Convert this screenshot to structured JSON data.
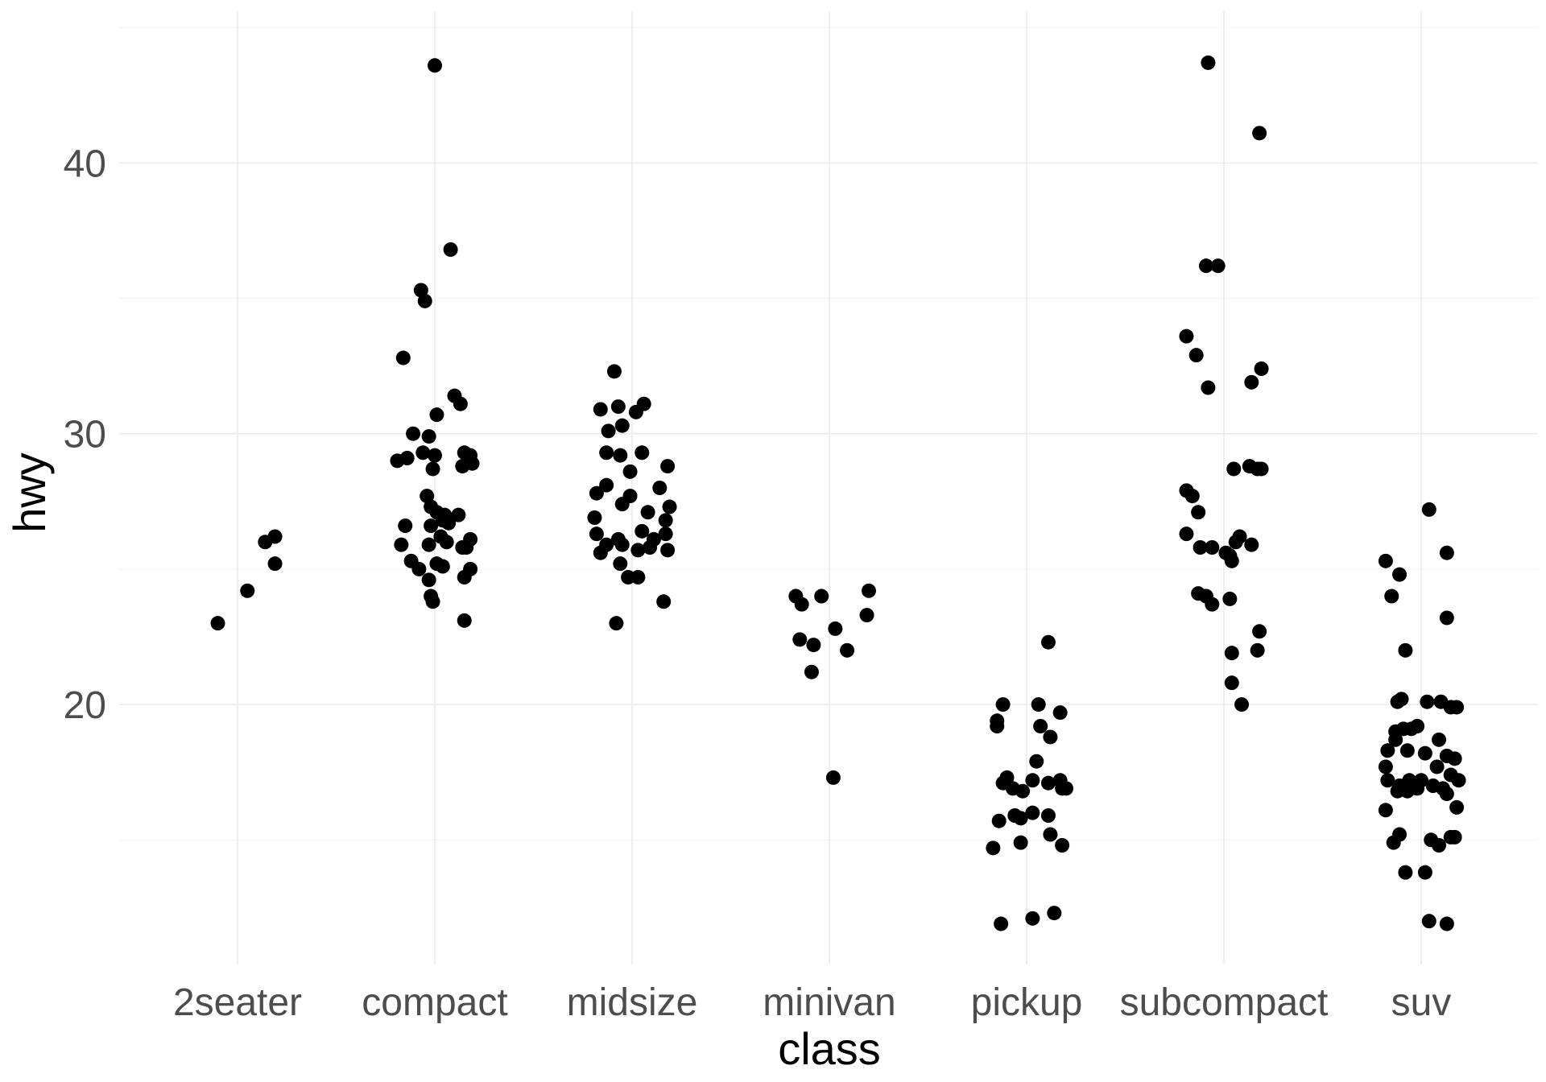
{
  "chart_data": {
    "type": "scatter",
    "title": "",
    "xlabel": "class",
    "ylabel": "hwy",
    "categories": [
      "2seater",
      "compact",
      "midsize",
      "minivan",
      "pickup",
      "subcompact",
      "suv"
    ],
    "y_ticks": [
      20,
      30,
      40
    ],
    "ylim": [
      10.4,
      45.6
    ],
    "grid": true,
    "point_color": "#000000",
    "background": "#ffffff",
    "grid_color": "#ebebeb",
    "points": [
      {
        "class": "2seater",
        "jitter": -0.1,
        "hwy": 23.0
      },
      {
        "class": "2seater",
        "jitter": 0.05,
        "hwy": 24.2
      },
      {
        "class": "2seater",
        "jitter": 0.14,
        "hwy": 26.0
      },
      {
        "class": "2seater",
        "jitter": 0.19,
        "hwy": 26.2
      },
      {
        "class": "2seater",
        "jitter": 0.19,
        "hwy": 25.2
      },
      {
        "class": "compact",
        "jitter": 0.0,
        "hwy": 43.6
      },
      {
        "class": "compact",
        "jitter": 0.08,
        "hwy": 36.8
      },
      {
        "class": "compact",
        "jitter": -0.07,
        "hwy": 35.3
      },
      {
        "class": "compact",
        "jitter": -0.05,
        "hwy": 34.9
      },
      {
        "class": "compact",
        "jitter": -0.16,
        "hwy": 32.8
      },
      {
        "class": "compact",
        "jitter": 0.1,
        "hwy": 31.4
      },
      {
        "class": "compact",
        "jitter": 0.13,
        "hwy": 31.1
      },
      {
        "class": "compact",
        "jitter": 0.01,
        "hwy": 30.7
      },
      {
        "class": "compact",
        "jitter": -0.11,
        "hwy": 30.0
      },
      {
        "class": "compact",
        "jitter": -0.03,
        "hwy": 29.9
      },
      {
        "class": "compact",
        "jitter": -0.06,
        "hwy": 29.3
      },
      {
        "class": "compact",
        "jitter": -0.14,
        "hwy": 29.1
      },
      {
        "class": "compact",
        "jitter": -0.19,
        "hwy": 29.0
      },
      {
        "class": "compact",
        "jitter": 0.0,
        "hwy": 29.2
      },
      {
        "class": "compact",
        "jitter": 0.15,
        "hwy": 29.3
      },
      {
        "class": "compact",
        "jitter": 0.18,
        "hwy": 29.2
      },
      {
        "class": "compact",
        "jitter": 0.19,
        "hwy": 28.9
      },
      {
        "class": "compact",
        "jitter": 0.14,
        "hwy": 28.8
      },
      {
        "class": "compact",
        "jitter": -0.01,
        "hwy": 28.7
      },
      {
        "class": "compact",
        "jitter": -0.04,
        "hwy": 27.7
      },
      {
        "class": "compact",
        "jitter": -0.02,
        "hwy": 27.3
      },
      {
        "class": "compact",
        "jitter": 0.01,
        "hwy": 27.1
      },
      {
        "class": "compact",
        "jitter": 0.05,
        "hwy": 27.0
      },
      {
        "class": "compact",
        "jitter": 0.12,
        "hwy": 27.0
      },
      {
        "class": "compact",
        "jitter": 0.04,
        "hwy": 26.8
      },
      {
        "class": "compact",
        "jitter": 0.07,
        "hwy": 26.7
      },
      {
        "class": "compact",
        "jitter": -0.02,
        "hwy": 26.6
      },
      {
        "class": "compact",
        "jitter": -0.15,
        "hwy": 26.6
      },
      {
        "class": "compact",
        "jitter": 0.03,
        "hwy": 26.2
      },
      {
        "class": "compact",
        "jitter": 0.18,
        "hwy": 26.1
      },
      {
        "class": "compact",
        "jitter": 0.06,
        "hwy": 26.0
      },
      {
        "class": "compact",
        "jitter": -0.03,
        "hwy": 25.9
      },
      {
        "class": "compact",
        "jitter": -0.17,
        "hwy": 25.9
      },
      {
        "class": "compact",
        "jitter": 0.16,
        "hwy": 25.8
      },
      {
        "class": "compact",
        "jitter": 0.14,
        "hwy": 25.8
      },
      {
        "class": "compact",
        "jitter": -0.12,
        "hwy": 25.3
      },
      {
        "class": "compact",
        "jitter": 0.01,
        "hwy": 25.2
      },
      {
        "class": "compact",
        "jitter": 0.04,
        "hwy": 25.1
      },
      {
        "class": "compact",
        "jitter": -0.08,
        "hwy": 25.0
      },
      {
        "class": "compact",
        "jitter": 0.18,
        "hwy": 25.0
      },
      {
        "class": "compact",
        "jitter": 0.15,
        "hwy": 24.7
      },
      {
        "class": "compact",
        "jitter": -0.03,
        "hwy": 24.6
      },
      {
        "class": "compact",
        "jitter": -0.02,
        "hwy": 24.0
      },
      {
        "class": "compact",
        "jitter": -0.01,
        "hwy": 23.8
      },
      {
        "class": "compact",
        "jitter": 0.15,
        "hwy": 23.1
      },
      {
        "class": "midsize",
        "jitter": -0.09,
        "hwy": 32.3
      },
      {
        "class": "midsize",
        "jitter": 0.06,
        "hwy": 31.1
      },
      {
        "class": "midsize",
        "jitter": -0.07,
        "hwy": 31.0
      },
      {
        "class": "midsize",
        "jitter": -0.16,
        "hwy": 30.9
      },
      {
        "class": "midsize",
        "jitter": 0.02,
        "hwy": 30.8
      },
      {
        "class": "midsize",
        "jitter": -0.05,
        "hwy": 30.3
      },
      {
        "class": "midsize",
        "jitter": -0.12,
        "hwy": 30.1
      },
      {
        "class": "midsize",
        "jitter": -0.13,
        "hwy": 29.3
      },
      {
        "class": "midsize",
        "jitter": -0.06,
        "hwy": 29.2
      },
      {
        "class": "midsize",
        "jitter": 0.05,
        "hwy": 29.3
      },
      {
        "class": "midsize",
        "jitter": 0.18,
        "hwy": 28.8
      },
      {
        "class": "midsize",
        "jitter": -0.01,
        "hwy": 28.6
      },
      {
        "class": "midsize",
        "jitter": 0.14,
        "hwy": 28.0
      },
      {
        "class": "midsize",
        "jitter": -0.13,
        "hwy": 28.1
      },
      {
        "class": "midsize",
        "jitter": -0.18,
        "hwy": 27.8
      },
      {
        "class": "midsize",
        "jitter": -0.01,
        "hwy": 27.7
      },
      {
        "class": "midsize",
        "jitter": -0.05,
        "hwy": 27.4
      },
      {
        "class": "midsize",
        "jitter": 0.19,
        "hwy": 27.3
      },
      {
        "class": "midsize",
        "jitter": 0.08,
        "hwy": 27.1
      },
      {
        "class": "midsize",
        "jitter": -0.19,
        "hwy": 26.9
      },
      {
        "class": "midsize",
        "jitter": 0.17,
        "hwy": 26.8
      },
      {
        "class": "midsize",
        "jitter": -0.18,
        "hwy": 26.3
      },
      {
        "class": "midsize",
        "jitter": 0.05,
        "hwy": 26.4
      },
      {
        "class": "midsize",
        "jitter": 0.17,
        "hwy": 26.3
      },
      {
        "class": "midsize",
        "jitter": -0.07,
        "hwy": 26.1
      },
      {
        "class": "midsize",
        "jitter": 0.11,
        "hwy": 26.1
      },
      {
        "class": "midsize",
        "jitter": -0.13,
        "hwy": 25.9
      },
      {
        "class": "midsize",
        "jitter": -0.05,
        "hwy": 25.9
      },
      {
        "class": "midsize",
        "jitter": 0.09,
        "hwy": 25.8
      },
      {
        "class": "midsize",
        "jitter": 0.03,
        "hwy": 25.7
      },
      {
        "class": "midsize",
        "jitter": -0.16,
        "hwy": 25.6
      },
      {
        "class": "midsize",
        "jitter": 0.18,
        "hwy": 25.7
      },
      {
        "class": "midsize",
        "jitter": -0.06,
        "hwy": 25.2
      },
      {
        "class": "midsize",
        "jitter": -0.02,
        "hwy": 24.7
      },
      {
        "class": "midsize",
        "jitter": 0.03,
        "hwy": 24.7
      },
      {
        "class": "midsize",
        "jitter": 0.16,
        "hwy": 23.8
      },
      {
        "class": "midsize",
        "jitter": -0.08,
        "hwy": 23.0
      },
      {
        "class": "minivan",
        "jitter": -0.17,
        "hwy": 24.0
      },
      {
        "class": "minivan",
        "jitter": -0.14,
        "hwy": 23.7
      },
      {
        "class": "minivan",
        "jitter": -0.04,
        "hwy": 24.0
      },
      {
        "class": "minivan",
        "jitter": 0.2,
        "hwy": 24.2
      },
      {
        "class": "minivan",
        "jitter": 0.19,
        "hwy": 23.3
      },
      {
        "class": "minivan",
        "jitter": 0.03,
        "hwy": 22.8
      },
      {
        "class": "minivan",
        "jitter": -0.15,
        "hwy": 22.4
      },
      {
        "class": "minivan",
        "jitter": -0.08,
        "hwy": 22.2
      },
      {
        "class": "minivan",
        "jitter": 0.09,
        "hwy": 22.0
      },
      {
        "class": "minivan",
        "jitter": -0.09,
        "hwy": 21.2
      },
      {
        "class": "minivan",
        "jitter": 0.02,
        "hwy": 17.3
      },
      {
        "class": "pickup",
        "jitter": 0.11,
        "hwy": 22.3
      },
      {
        "class": "pickup",
        "jitter": -0.12,
        "hwy": 20.0
      },
      {
        "class": "pickup",
        "jitter": 0.06,
        "hwy": 20.0
      },
      {
        "class": "pickup",
        "jitter": 0.17,
        "hwy": 19.7
      },
      {
        "class": "pickup",
        "jitter": -0.15,
        "hwy": 19.4
      },
      {
        "class": "pickup",
        "jitter": -0.15,
        "hwy": 19.2
      },
      {
        "class": "pickup",
        "jitter": 0.07,
        "hwy": 19.2
      },
      {
        "class": "pickup",
        "jitter": 0.12,
        "hwy": 18.8
      },
      {
        "class": "pickup",
        "jitter": 0.05,
        "hwy": 17.9
      },
      {
        "class": "pickup",
        "jitter": -0.1,
        "hwy": 17.3
      },
      {
        "class": "pickup",
        "jitter": -0.12,
        "hwy": 17.1
      },
      {
        "class": "pickup",
        "jitter": 0.03,
        "hwy": 17.2
      },
      {
        "class": "pickup",
        "jitter": 0.11,
        "hwy": 17.1
      },
      {
        "class": "pickup",
        "jitter": 0.17,
        "hwy": 17.2
      },
      {
        "class": "pickup",
        "jitter": -0.07,
        "hwy": 16.9
      },
      {
        "class": "pickup",
        "jitter": -0.02,
        "hwy": 16.8
      },
      {
        "class": "pickup",
        "jitter": 0.18,
        "hwy": 16.9
      },
      {
        "class": "pickup",
        "jitter": 0.2,
        "hwy": 16.9
      },
      {
        "class": "pickup",
        "jitter": 0.03,
        "hwy": 16.0
      },
      {
        "class": "pickup",
        "jitter": 0.11,
        "hwy": 15.9
      },
      {
        "class": "pickup",
        "jitter": -0.06,
        "hwy": 15.9
      },
      {
        "class": "pickup",
        "jitter": -0.14,
        "hwy": 15.7
      },
      {
        "class": "pickup",
        "jitter": -0.03,
        "hwy": 15.8
      },
      {
        "class": "pickup",
        "jitter": 0.12,
        "hwy": 15.2
      },
      {
        "class": "pickup",
        "jitter": -0.03,
        "hwy": 14.9
      },
      {
        "class": "pickup",
        "jitter": -0.17,
        "hwy": 14.7
      },
      {
        "class": "pickup",
        "jitter": 0.18,
        "hwy": 14.8
      },
      {
        "class": "pickup",
        "jitter": 0.14,
        "hwy": 12.3
      },
      {
        "class": "pickup",
        "jitter": 0.03,
        "hwy": 12.1
      },
      {
        "class": "pickup",
        "jitter": -0.13,
        "hwy": 11.9
      },
      {
        "class": "subcompact",
        "jitter": -0.08,
        "hwy": 43.7
      },
      {
        "class": "subcompact",
        "jitter": 0.18,
        "hwy": 41.1
      },
      {
        "class": "subcompact",
        "jitter": -0.09,
        "hwy": 36.2
      },
      {
        "class": "subcompact",
        "jitter": -0.03,
        "hwy": 36.2
      },
      {
        "class": "subcompact",
        "jitter": -0.19,
        "hwy": 33.6
      },
      {
        "class": "subcompact",
        "jitter": -0.14,
        "hwy": 32.9
      },
      {
        "class": "subcompact",
        "jitter": 0.19,
        "hwy": 32.4
      },
      {
        "class": "subcompact",
        "jitter": 0.14,
        "hwy": 31.9
      },
      {
        "class": "subcompact",
        "jitter": -0.08,
        "hwy": 31.7
      },
      {
        "class": "subcompact",
        "jitter": 0.05,
        "hwy": 28.7
      },
      {
        "class": "subcompact",
        "jitter": 0.13,
        "hwy": 28.8
      },
      {
        "class": "subcompact",
        "jitter": 0.17,
        "hwy": 28.7
      },
      {
        "class": "subcompact",
        "jitter": 0.19,
        "hwy": 28.7
      },
      {
        "class": "subcompact",
        "jitter": -0.19,
        "hwy": 27.9
      },
      {
        "class": "subcompact",
        "jitter": -0.16,
        "hwy": 27.7
      },
      {
        "class": "subcompact",
        "jitter": -0.13,
        "hwy": 27.1
      },
      {
        "class": "subcompact",
        "jitter": -0.19,
        "hwy": 26.3
      },
      {
        "class": "subcompact",
        "jitter": 0.08,
        "hwy": 26.2
      },
      {
        "class": "subcompact",
        "jitter": 0.06,
        "hwy": 26.0
      },
      {
        "class": "subcompact",
        "jitter": -0.12,
        "hwy": 25.8
      },
      {
        "class": "subcompact",
        "jitter": -0.06,
        "hwy": 25.8
      },
      {
        "class": "subcompact",
        "jitter": 0.14,
        "hwy": 25.9
      },
      {
        "class": "subcompact",
        "jitter": 0.03,
        "hwy": 25.5
      },
      {
        "class": "subcompact",
        "jitter": 0.04,
        "hwy": 25.3
      },
      {
        "class": "subcompact",
        "jitter": 0.01,
        "hwy": 25.6
      },
      {
        "class": "subcompact",
        "jitter": -0.13,
        "hwy": 24.1
      },
      {
        "class": "subcompact",
        "jitter": -0.09,
        "hwy": 24.0
      },
      {
        "class": "subcompact",
        "jitter": -0.06,
        "hwy": 23.7
      },
      {
        "class": "subcompact",
        "jitter": 0.03,
        "hwy": 23.9
      },
      {
        "class": "subcompact",
        "jitter": 0.18,
        "hwy": 22.7
      },
      {
        "class": "subcompact",
        "jitter": 0.17,
        "hwy": 22.0
      },
      {
        "class": "subcompact",
        "jitter": 0.04,
        "hwy": 21.9
      },
      {
        "class": "subcompact",
        "jitter": 0.04,
        "hwy": 20.8
      },
      {
        "class": "subcompact",
        "jitter": 0.09,
        "hwy": 20.0
      },
      {
        "class": "suv",
        "jitter": 0.04,
        "hwy": 27.2
      },
      {
        "class": "suv",
        "jitter": 0.13,
        "hwy": 25.6
      },
      {
        "class": "suv",
        "jitter": -0.18,
        "hwy": 25.3
      },
      {
        "class": "suv",
        "jitter": -0.11,
        "hwy": 24.8
      },
      {
        "class": "suv",
        "jitter": -0.15,
        "hwy": 24.0
      },
      {
        "class": "suv",
        "jitter": 0.13,
        "hwy": 23.2
      },
      {
        "class": "suv",
        "jitter": -0.08,
        "hwy": 22.0
      },
      {
        "class": "suv",
        "jitter": -0.1,
        "hwy": 20.2
      },
      {
        "class": "suv",
        "jitter": -0.12,
        "hwy": 20.1
      },
      {
        "class": "suv",
        "jitter": 0.03,
        "hwy": 20.1
      },
      {
        "class": "suv",
        "jitter": 0.1,
        "hwy": 20.1
      },
      {
        "class": "suv",
        "jitter": 0.15,
        "hwy": 19.9
      },
      {
        "class": "suv",
        "jitter": 0.18,
        "hwy": 19.9
      },
      {
        "class": "suv",
        "jitter": -0.13,
        "hwy": 19.0
      },
      {
        "class": "suv",
        "jitter": -0.05,
        "hwy": 19.1
      },
      {
        "class": "suv",
        "jitter": -0.02,
        "hwy": 19.2
      },
      {
        "class": "suv",
        "jitter": 0.09,
        "hwy": 18.7
      },
      {
        "class": "suv",
        "jitter": -0.09,
        "hwy": 19.1
      },
      {
        "class": "suv",
        "jitter": -0.17,
        "hwy": 18.3
      },
      {
        "class": "suv",
        "jitter": -0.07,
        "hwy": 18.3
      },
      {
        "class": "suv",
        "jitter": 0.02,
        "hwy": 18.2
      },
      {
        "class": "suv",
        "jitter": -0.13,
        "hwy": 18.7
      },
      {
        "class": "suv",
        "jitter": 0.13,
        "hwy": 18.1
      },
      {
        "class": "suv",
        "jitter": 0.17,
        "hwy": 18.0
      },
      {
        "class": "suv",
        "jitter": -0.18,
        "hwy": 17.7
      },
      {
        "class": "suv",
        "jitter": 0.08,
        "hwy": 17.7
      },
      {
        "class": "suv",
        "jitter": 0.15,
        "hwy": 17.4
      },
      {
        "class": "suv",
        "jitter": 0.19,
        "hwy": 17.2
      },
      {
        "class": "suv",
        "jitter": -0.17,
        "hwy": 17.2
      },
      {
        "class": "suv",
        "jitter": -0.11,
        "hwy": 17.0
      },
      {
        "class": "suv",
        "jitter": -0.06,
        "hwy": 17.2
      },
      {
        "class": "suv",
        "jitter": 0.0,
        "hwy": 17.2
      },
      {
        "class": "suv",
        "jitter": 0.06,
        "hwy": 17.0
      },
      {
        "class": "suv",
        "jitter": 0.11,
        "hwy": 16.9
      },
      {
        "class": "suv",
        "jitter": -0.12,
        "hwy": 16.8
      },
      {
        "class": "suv",
        "jitter": -0.07,
        "hwy": 16.8
      },
      {
        "class": "suv",
        "jitter": -0.02,
        "hwy": 16.9
      },
      {
        "class": "suv",
        "jitter": 0.13,
        "hwy": 16.7
      },
      {
        "class": "suv",
        "jitter": -0.18,
        "hwy": 16.1
      },
      {
        "class": "suv",
        "jitter": 0.18,
        "hwy": 16.2
      },
      {
        "class": "suv",
        "jitter": -0.11,
        "hwy": 15.2
      },
      {
        "class": "suv",
        "jitter": -0.14,
        "hwy": 14.9
      },
      {
        "class": "suv",
        "jitter": 0.05,
        "hwy": 15.0
      },
      {
        "class": "suv",
        "jitter": 0.09,
        "hwy": 14.8
      },
      {
        "class": "suv",
        "jitter": 0.15,
        "hwy": 15.1
      },
      {
        "class": "suv",
        "jitter": 0.17,
        "hwy": 15.1
      },
      {
        "class": "suv",
        "jitter": -0.08,
        "hwy": 13.8
      },
      {
        "class": "suv",
        "jitter": 0.02,
        "hwy": 13.8
      },
      {
        "class": "suv",
        "jitter": 0.04,
        "hwy": 12.0
      },
      {
        "class": "suv",
        "jitter": 0.13,
        "hwy": 11.9
      }
    ]
  }
}
